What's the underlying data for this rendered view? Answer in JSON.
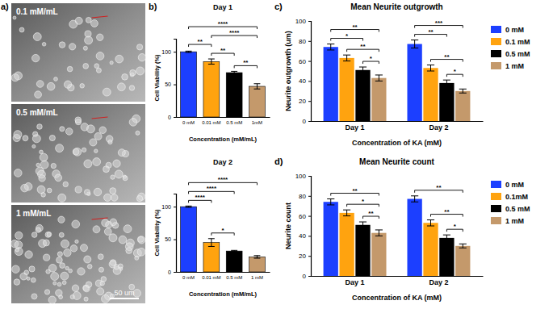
{
  "micrographs": {
    "panel": "a)",
    "images": [
      {
        "label": "0.1 mM/mL"
      },
      {
        "label": "0.5 mM/mL"
      },
      {
        "label": "1 mM/mL"
      }
    ],
    "scale_bar": "50 um"
  },
  "chart_data": [
    {
      "type": "bar",
      "panel": "b)",
      "title": "Day 1",
      "x_label": "Concentration (mM/mL)",
      "y_label": "Cell Viability (%)",
      "categories": [
        "0 mM",
        "0.01 mM",
        "0.5 mM",
        "1mM"
      ],
      "values": [
        100,
        85,
        68,
        47
      ],
      "errors": [
        1,
        4,
        2,
        4
      ],
      "colors": [
        "#1c3fff",
        "#ffa30f",
        "#000000",
        "#c4996b"
      ],
      "ylim": [
        0,
        120
      ],
      "yticks": [
        0,
        50,
        100
      ],
      "annotations": [
        {
          "text": "****",
          "from": 0,
          "to": 3
        },
        {
          "text": "****",
          "from": 1,
          "to": 3
        },
        {
          "text": "**",
          "from": 0,
          "to": 1
        },
        {
          "text": "**",
          "from": 1,
          "to": 2
        },
        {
          "text": "**",
          "from": 2,
          "to": 3
        }
      ]
    },
    {
      "type": "bar",
      "title": "Day 2",
      "x_label": "Concentration (mM/mL)",
      "y_label": "Cell Viability (%)",
      "categories": [
        "0 mM",
        "0.01 mM",
        "0.5 mM",
        "1 mM"
      ],
      "values": [
        100,
        45,
        32,
        23
      ],
      "errors": [
        1,
        6,
        1,
        2
      ],
      "colors": [
        "#1c3fff",
        "#ffa30f",
        "#000000",
        "#c4996b"
      ],
      "ylim": [
        0,
        120
      ],
      "yticks": [
        0,
        50,
        100
      ],
      "annotations": [
        {
          "text": "****",
          "from": 0,
          "to": 3
        },
        {
          "text": "****",
          "from": 0,
          "to": 2
        },
        {
          "text": "****",
          "from": 0,
          "to": 1
        },
        {
          "text": "*",
          "from": 1,
          "to": 2
        }
      ]
    },
    {
      "type": "bar",
      "panel": "c)",
      "title": "Mean Neurite outgrowth",
      "x_label": "Concentration of KA (mM)",
      "y_label": "Neurite outgrowth (um)",
      "categories": [
        "Day 1",
        "Day 2"
      ],
      "series": [
        {
          "name": "0 mM",
          "color": "#1c3fff",
          "values": [
            74,
            77
          ],
          "errors": [
            3,
            4
          ]
        },
        {
          "name": "0.1 mM",
          "color": "#ffa30f",
          "values": [
            63,
            53
          ],
          "errors": [
            3,
            3
          ]
        },
        {
          "name": "0.5 mM",
          "color": "#000000",
          "values": [
            51,
            38
          ],
          "errors": [
            3,
            3
          ]
        },
        {
          "name": "1 mM",
          "color": "#c4996b",
          "values": [
            43,
            30
          ],
          "errors": [
            3,
            2
          ]
        }
      ],
      "ylim": [
        0,
        100
      ],
      "yticks": [
        0,
        20,
        40,
        60,
        80,
        100
      ],
      "legend": "right",
      "annotations": [
        {
          "text": "**",
          "group": 0,
          "from": 0,
          "to": 3
        },
        {
          "text": "*",
          "group": 0,
          "from": 0,
          "to": 2
        },
        {
          "text": "**",
          "group": 0,
          "from": 1,
          "to": 3
        },
        {
          "text": "*",
          "group": 0,
          "from": 2,
          "to": 3
        },
        {
          "text": "***",
          "group": 1,
          "from": 0,
          "to": 3
        },
        {
          "text": "**",
          "group": 1,
          "from": 0,
          "to": 2
        },
        {
          "text": "**",
          "group": 1,
          "from": 1,
          "to": 3
        },
        {
          "text": "*",
          "group": 1,
          "from": 2,
          "to": 3
        }
      ]
    },
    {
      "type": "bar",
      "panel": "d)",
      "title": "Mean Neurite count",
      "x_label": "Concentration of KA (mM)",
      "y_label": "Neurite count",
      "categories": [
        "Day 1",
        "Day 2"
      ],
      "series": [
        {
          "name": "0 mM",
          "color": "#1c3fff",
          "values": [
            74,
            77
          ],
          "errors": [
            3,
            3
          ]
        },
        {
          "name": "0.1mM",
          "color": "#ffa30f",
          "values": [
            63,
            53
          ],
          "errors": [
            3,
            3
          ]
        },
        {
          "name": "0.5 mM",
          "color": "#000000",
          "values": [
            51,
            38
          ],
          "errors": [
            3,
            3
          ]
        },
        {
          "name": "1 mM",
          "color": "#c4996b",
          "values": [
            43,
            30
          ],
          "errors": [
            3,
            2
          ]
        }
      ],
      "ylim": [
        0,
        100
      ],
      "yticks": [
        0,
        20,
        40,
        60,
        80,
        100
      ],
      "legend": "right",
      "annotations": [
        {
          "text": "**",
          "group": 0,
          "from": 0,
          "to": 3
        },
        {
          "text": "*",
          "group": 0,
          "from": 1,
          "to": 3
        },
        {
          "text": "**",
          "group": 0,
          "from": 2,
          "to": 3
        },
        {
          "text": "**",
          "group": 1,
          "from": 0,
          "to": 3
        },
        {
          "text": "**",
          "group": 1,
          "from": 1,
          "to": 3
        },
        {
          "text": "*",
          "group": 1,
          "from": 2,
          "to": 3
        }
      ]
    }
  ]
}
